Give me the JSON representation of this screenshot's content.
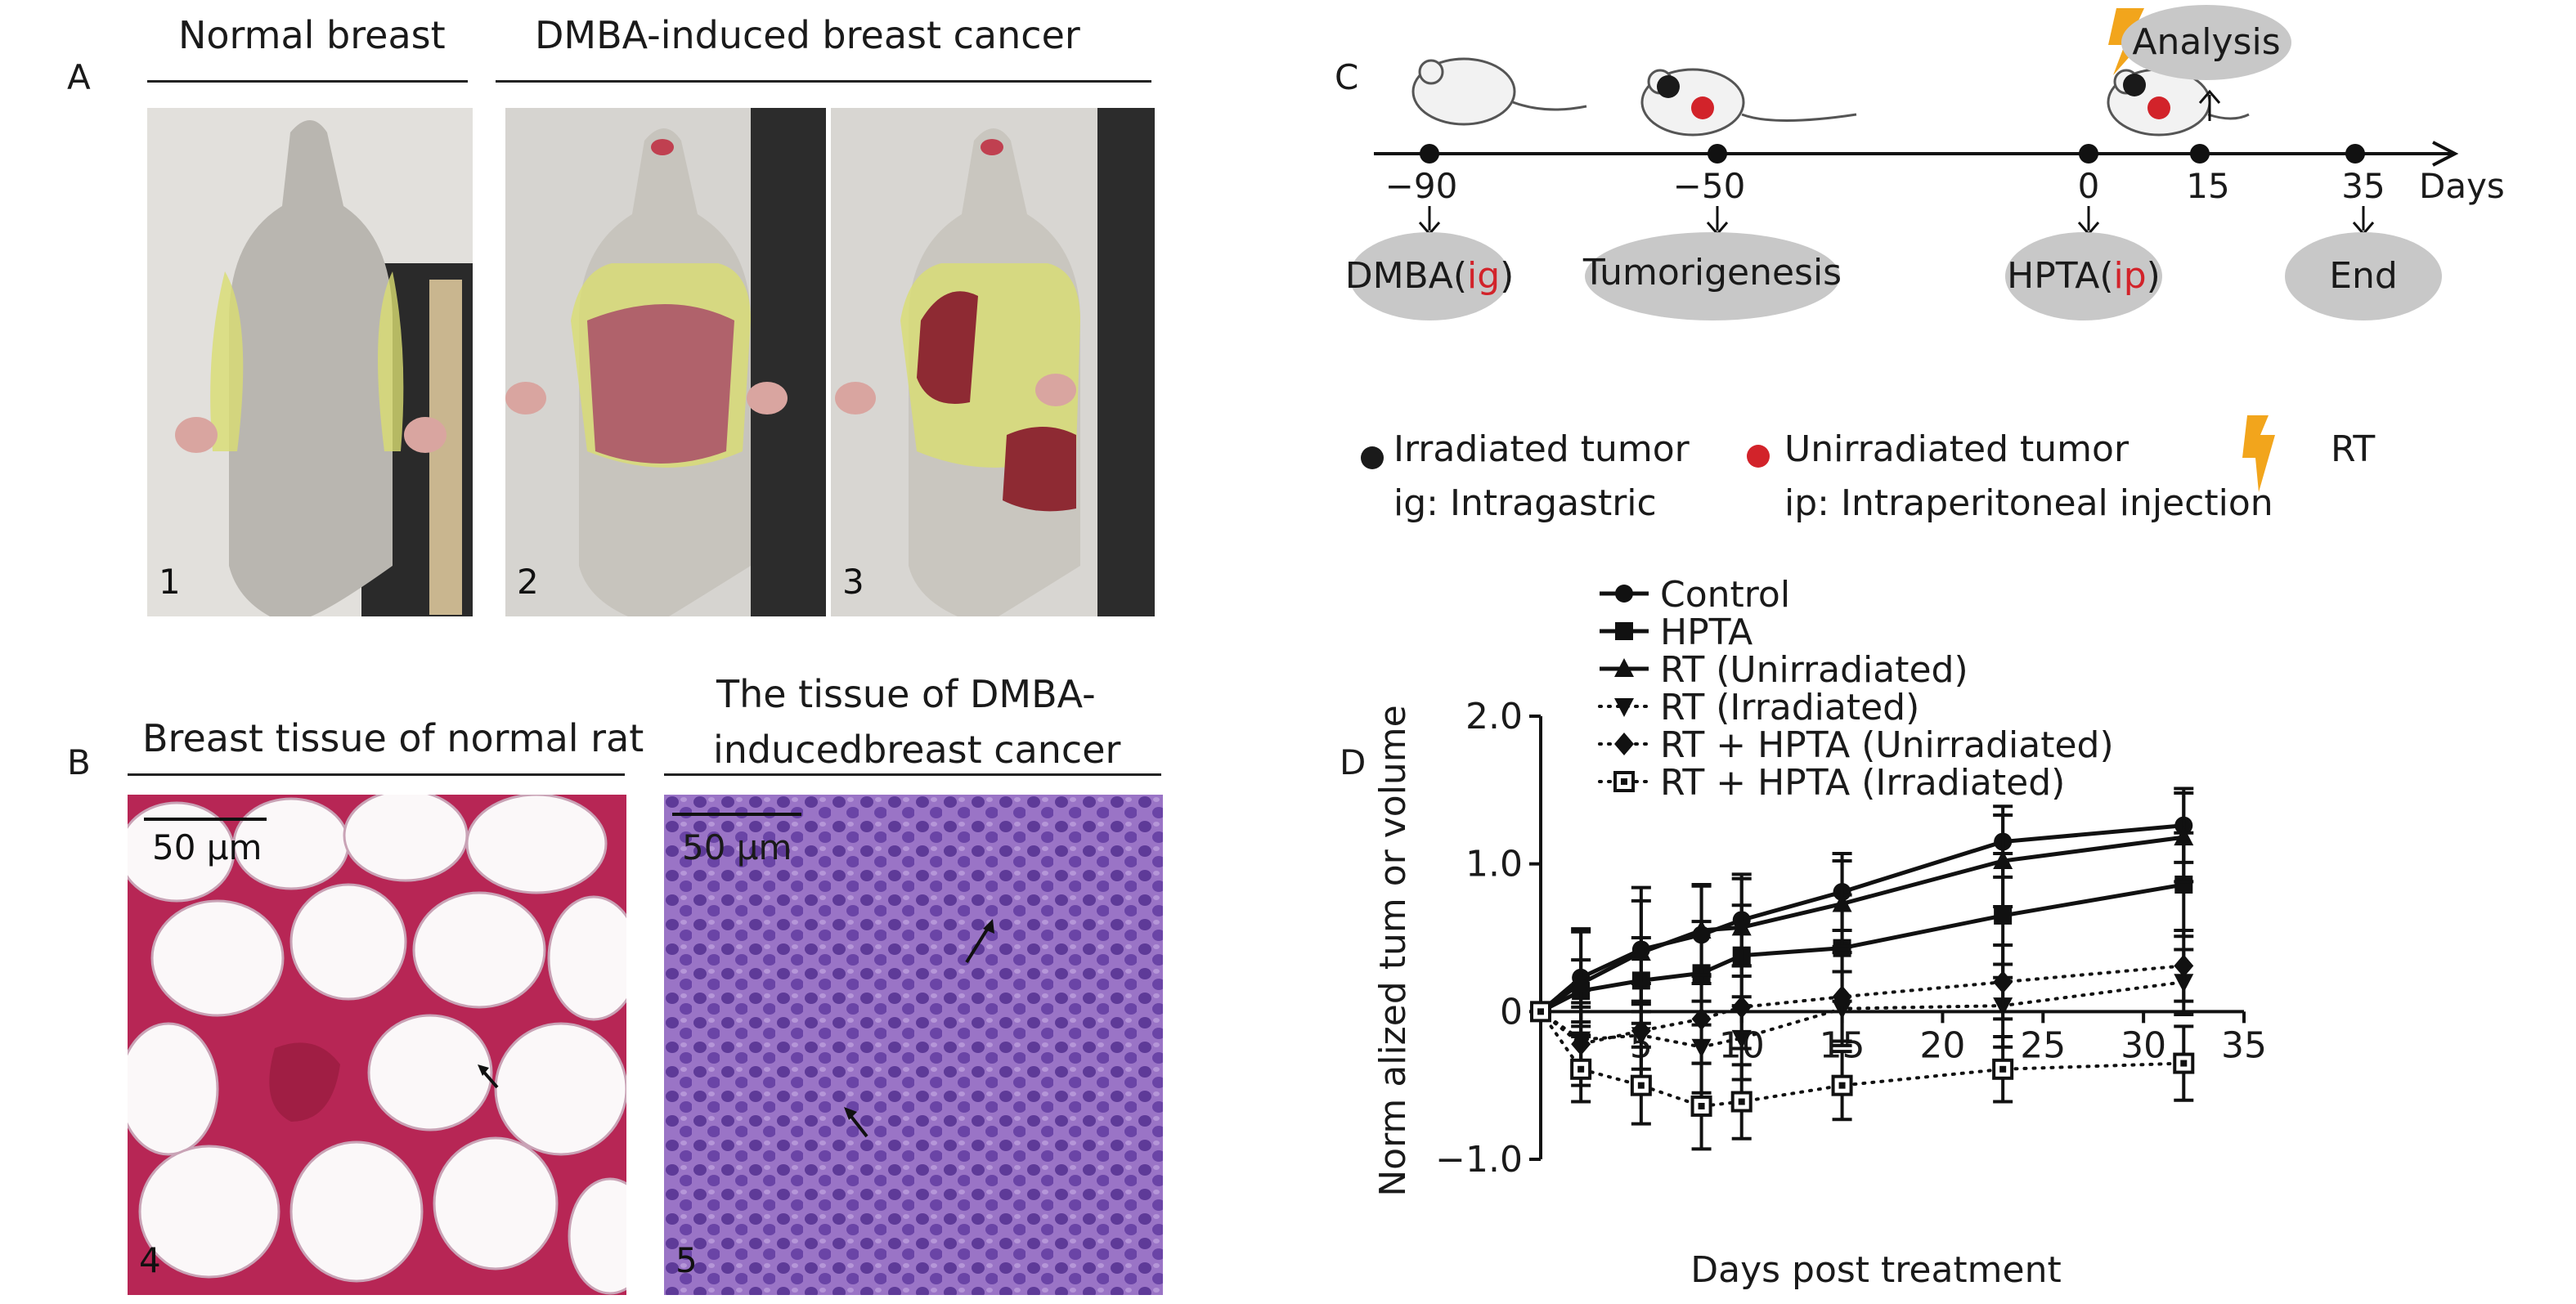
{
  "panel_a": {
    "letter": "A",
    "normal_title": "Normal breast",
    "cancer_title": "DMBA-induced breast cancer",
    "photo_labels": [
      "1",
      "2",
      "3"
    ]
  },
  "panel_b": {
    "letter": "B",
    "normal_title": "Breast tissue of normal rat",
    "cancer_title_line1": "The tissue of DMBA-",
    "cancer_title_line2": "inducedbreast cancer",
    "scale_label": "50 μm",
    "photo_labels": [
      "4",
      "5"
    ]
  },
  "panel_c": {
    "letter": "C",
    "axis_label": "Days",
    "ticks": [
      "−90",
      "−50",
      "0",
      "15",
      "35"
    ],
    "events": {
      "dmba": "DMBA(",
      "dmba_route": "ig",
      "dmba_close": ")",
      "tumorigenesis": "Tumorigenesis",
      "hpta": "HPTA(",
      "hpta_route": "ip",
      "hpta_close": ")",
      "end": "End",
      "analysis": "Analysis"
    },
    "legend": {
      "irradiated": "Irradiated tumor",
      "unirradiated": "Unirradiated tumor",
      "rt": "RT",
      "ig": "ig: Intragastric",
      "ip": "ip: Intraperitoneal injection"
    },
    "colors": {
      "tumor_red": "#d2232a",
      "ellipse_gray": "#c8c8c8",
      "lightning": "#f2a51c"
    }
  },
  "panel_d": {
    "letter": "D"
  },
  "chart_data": {
    "type": "line",
    "xlabel": "Days post treatment",
    "ylabel": "Norm alized tum or volume",
    "xlim": [
      0,
      35
    ],
    "ylim": [
      -1.0,
      2.0
    ],
    "x_ticks": [
      "5",
      "10",
      "15",
      "20",
      "25",
      "30",
      "35"
    ],
    "y_ticks": [
      "2.0",
      "1.0",
      "0",
      "−1.0"
    ],
    "origin_label": "0",
    "x": [
      0,
      2,
      5,
      8,
      10,
      15,
      23,
      32
    ],
    "series": [
      {
        "name": "Control",
        "marker": "circle",
        "dashed": false,
        "values": [
          0,
          0.23,
          0.42,
          0.52,
          0.62,
          0.81,
          1.15,
          1.26
        ],
        "errors": [
          0,
          0.33,
          0.42,
          0.33,
          0.31,
          0.26,
          0.24,
          0.25
        ]
      },
      {
        "name": "HPTA",
        "marker": "square",
        "dashed": false,
        "values": [
          0,
          0.14,
          0.21,
          0.26,
          0.38,
          0.43,
          0.65,
          0.86
        ],
        "errors": [
          0,
          0.21,
          0.29,
          0.35,
          0.34,
          0.36,
          0.42,
          0.35
        ]
      },
      {
        "name": "RT (Unirradiated)",
        "marker": "triangle",
        "dashed": false,
        "values": [
          0,
          0.19,
          0.4,
          0.55,
          0.57,
          0.73,
          1.02,
          1.18
        ],
        "errors": [
          0,
          0.35,
          0.35,
          0.31,
          0.33,
          0.29,
          0.31,
          0.3
        ]
      },
      {
        "name": "RT (Irradiated)",
        "marker": "triangle-down",
        "dashed": true,
        "values": [
          0,
          -0.19,
          -0.16,
          -0.24,
          -0.18,
          0.02,
          0.04,
          0.2
        ],
        "errors": [
          0,
          0.22,
          0.23,
          0.31,
          0.28,
          0.25,
          0.28,
          0.22
        ]
      },
      {
        "name": "RT + HPTA (Unirradiated)",
        "marker": "diamond",
        "dashed": true,
        "values": [
          0,
          -0.22,
          -0.13,
          -0.05,
          0.03,
          0.1,
          0.2,
          0.31
        ],
        "errors": [
          0,
          0.28,
          0.32,
          0.3,
          0.28,
          0.3,
          0.25,
          0.24
        ]
      },
      {
        "name": "RT + HPTA (Irradiated)",
        "marker": "dotted-square",
        "dashed": true,
        "values": [
          0,
          -0.39,
          -0.5,
          -0.64,
          -0.61,
          -0.5,
          -0.39,
          -0.35
        ],
        "errors": [
          0,
          0.22,
          0.26,
          0.29,
          0.25,
          0.23,
          0.22,
          0.25
        ]
      }
    ]
  }
}
